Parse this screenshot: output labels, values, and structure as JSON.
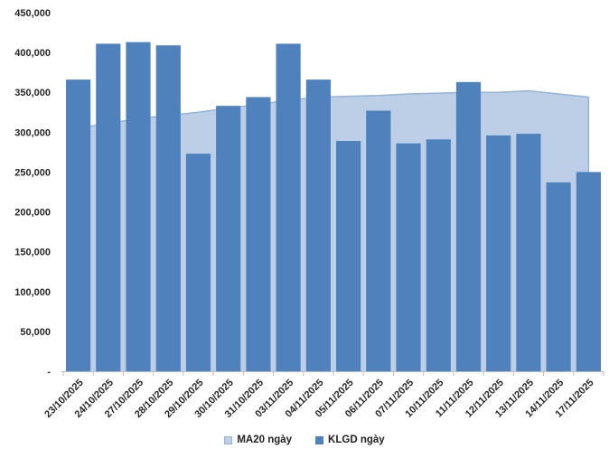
{
  "chart_data": {
    "type": "combo",
    "title": "",
    "categories": [
      "23/10/2025",
      "24/10/2025",
      "27/10/2025",
      "28/10/2025",
      "29/10/2025",
      "30/10/2025",
      "31/10/2025",
      "03/11/2025",
      "04/11/2025",
      "05/11/2025",
      "06/11/2025",
      "07/11/2025",
      "10/11/2025",
      "11/11/2025",
      "12/11/2025",
      "13/11/2025",
      "14/11/2025",
      "17/11/2025"
    ],
    "series": [
      {
        "name": "MA20 ngày",
        "type": "area",
        "color": "#BCCFE6",
        "border_color": "#95B3D7",
        "values": [
          305000,
          311000,
          317000,
          321000,
          325000,
          330000,
          335000,
          340000,
          344000,
          345000,
          346000,
          348000,
          349000,
          350000,
          350000,
          352000,
          348000,
          344000
        ]
      },
      {
        "name": "KLGD ngày",
        "type": "bar",
        "color": "#4F81BD",
        "values": [
          366000,
          411000,
          413000,
          409000,
          273000,
          333000,
          344000,
          411000,
          366000,
          289000,
          327000,
          286000,
          291000,
          363000,
          296000,
          298000,
          237000,
          250000
        ]
      }
    ],
    "ylim": [
      0,
      450000
    ],
    "ytick_step": 50000,
    "ytick_labels": [
      "-",
      "50,000",
      "100,000",
      "150,000",
      "200,000",
      "250,000",
      "300,000",
      "350,000",
      "400,000",
      "450,000"
    ],
    "grid": false,
    "legend_position": "bottom",
    "axis_color": "#BFBFBF",
    "text_color": "#262626",
    "background": "#FFFFFF"
  }
}
